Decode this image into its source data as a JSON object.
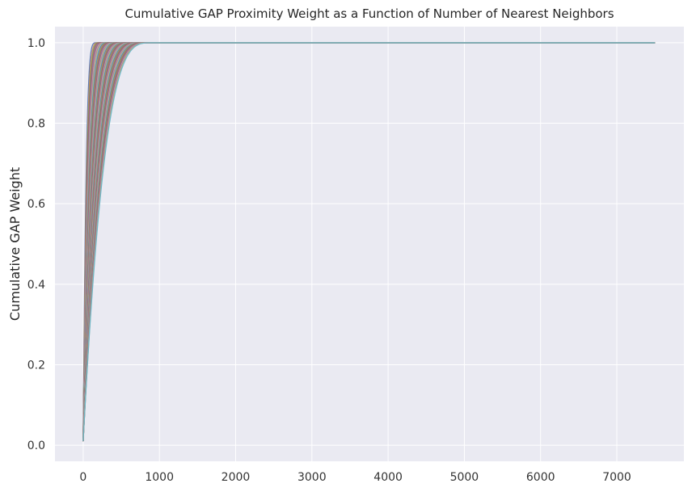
{
  "chart_data": {
    "type": "line",
    "title": "Cumulative GAP Proximity Weight as a Function of Number of Nearest Neighbors",
    "xlabel": "",
    "ylabel": "Cumulative GAP Weight",
    "xlim": [
      -370,
      7880
    ],
    "ylim": [
      -0.04,
      1.04
    ],
    "xticks": [
      0,
      1000,
      2000,
      3000,
      4000,
      5000,
      6000,
      7000
    ],
    "yticks": [
      0.0,
      0.2,
      0.4,
      0.6,
      0.8,
      1.0
    ],
    "xtick_labels": [
      "0",
      "1000",
      "2000",
      "3000",
      "4000",
      "5000",
      "6000",
      "7000"
    ],
    "ytick_labels": [
      "0.0",
      "0.2",
      "0.4",
      "0.6",
      "0.8",
      "1.0"
    ],
    "grid": true,
    "legend": "none",
    "background": "#eaeaf2",
    "curve_family": {
      "count": 60,
      "x_max": 7500,
      "y_start": 0.01,
      "y_end": 1.0,
      "saturation_x_range": [
        180,
        900
      ],
      "example_points": [
        {
          "x": 0,
          "y": 0.01
        },
        {
          "x": 20,
          "y": 0.2
        },
        {
          "x": 60,
          "y": 0.4
        },
        {
          "x": 100,
          "y": 0.55
        },
        {
          "x": 200,
          "y": 0.75
        },
        {
          "x": 400,
          "y": 0.92
        },
        {
          "x": 600,
          "y": 0.98
        },
        {
          "x": 900,
          "y": 1.0
        },
        {
          "x": 7500,
          "y": 1.0
        }
      ]
    },
    "palette": [
      "#4c72b0",
      "#dd8452",
      "#55a868",
      "#c44e52",
      "#8172b3",
      "#937860",
      "#da8bc3",
      "#8c8c8c",
      "#ccb974",
      "#64b5cd"
    ]
  }
}
